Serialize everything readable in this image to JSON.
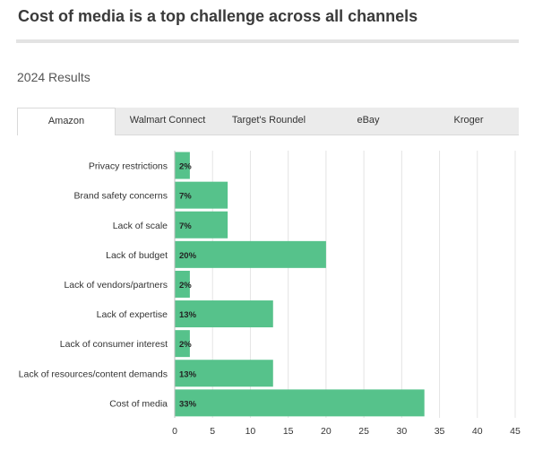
{
  "title": "Cost of media is a top challenge across all channels",
  "subtitle": "2024 Results",
  "tabs": [
    {
      "label": "Amazon",
      "active": true
    },
    {
      "label": "Walmart Connect",
      "active": false
    },
    {
      "label": "Target's Roundel",
      "active": false
    },
    {
      "label": "eBay",
      "active": false
    },
    {
      "label": "Kroger",
      "active": false
    }
  ],
  "colors": {
    "bar": "#56c28b",
    "grid": "#e4e4e4",
    "axis": "#bdbdbd"
  },
  "chart_data": {
    "type": "bar",
    "orientation": "horizontal",
    "categories": [
      "Privacy restrictions",
      "Brand safety concerns",
      "Lack of scale",
      "Lack of budget",
      "Lack of vendors/partners",
      "Lack of expertise",
      "Lack of consumer interest",
      "Lack of resources/content demands",
      "Cost of media"
    ],
    "values": [
      2,
      7,
      7,
      20,
      2,
      13,
      2,
      13,
      33
    ],
    "value_labels": [
      "2%",
      "7%",
      "7%",
      "20%",
      "2%",
      "13%",
      "2%",
      "13%",
      "33%"
    ],
    "ticks": [
      "0",
      "5",
      "10",
      "15",
      "20",
      "25",
      "30",
      "35",
      "40",
      "45"
    ],
    "xlim": [
      0,
      45
    ],
    "grid": true
  }
}
